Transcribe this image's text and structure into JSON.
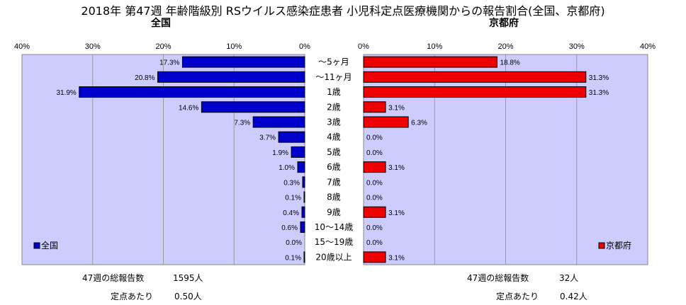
{
  "chart_data": {
    "type": "bar",
    "title": "2018年 第47週 年齢階級別 RSウイルス感染症患者 小児科定点医療機関からの報告割合(全国、京都府)",
    "categories": [
      "〜5ヶ月",
      "〜11ヶ月",
      "1歳",
      "2歳",
      "3歳",
      "4歳",
      "5歳",
      "6歳",
      "7歳",
      "8歳",
      "9歳",
      "10〜14歳",
      "15〜19歳",
      "20歳以上"
    ],
    "series": [
      {
        "name": "全国",
        "values": [
          17.3,
          20.8,
          31.9,
          14.6,
          7.3,
          3.7,
          1.9,
          1.0,
          0.3,
          0.1,
          0.4,
          0.6,
          0.0,
          0.1
        ],
        "labels": [
          "17.3%",
          "20.8%",
          "31.9%",
          "14.6%",
          "7.3%",
          "3.7%",
          "1.9%",
          "1.0%",
          "0.3%",
          "0.1%",
          "0.4%",
          "0.6%",
          "0.0%",
          "0.1%"
        ],
        "color": "#0000cc"
      },
      {
        "name": "京都府",
        "values": [
          18.8,
          31.3,
          31.3,
          3.1,
          6.3,
          0.0,
          0.0,
          3.1,
          0.0,
          0.0,
          3.1,
          0.0,
          0.0,
          3.1
        ],
        "labels": [
          "18.8%",
          "31.3%",
          "31.3%",
          "3.1%",
          "6.3%",
          "0.0%",
          "0.0%",
          "3.1%",
          "0.0%",
          "0.0%",
          "3.1%",
          "0.0%",
          "0.0%",
          "3.1%"
        ],
        "color": "#ee0000"
      }
    ],
    "xlim": [
      0,
      40
    ],
    "tick_labels": [
      "40%",
      "30%",
      "20%",
      "10%",
      "0%"
    ],
    "right_tick_labels": [
      "0%",
      "10%",
      "20%",
      "30%",
      "40%"
    ],
    "grid": true,
    "legend_placement": "bottom-left / bottom-right",
    "plot_background": "#ccccff"
  },
  "panels": {
    "left_title": "全国",
    "right_title": "京都府"
  },
  "legend": {
    "left_label": "全国",
    "right_label": "京都府"
  },
  "footer": {
    "left": {
      "reports_label": "47週の総報告数",
      "reports_value": "1595人",
      "per_site_label": "定点あたり",
      "per_site_value": "0.50人"
    },
    "right": {
      "reports_label": "47週の総報告数",
      "reports_value": "32人",
      "per_site_label": "定点あたり",
      "per_site_value": "0.42人"
    }
  }
}
